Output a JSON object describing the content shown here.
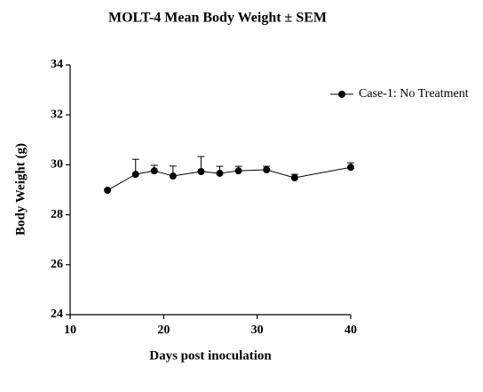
{
  "chart_data": {
    "type": "line",
    "title": "MOLT-4 Mean Body Weight ± SEM",
    "xlabel": "Days post inoculation",
    "ylabel": "Body Weight (g)",
    "x": [
      14,
      17,
      19,
      21,
      24,
      26,
      28,
      31,
      34,
      40
    ],
    "series": [
      {
        "name": "Case-1: No Treatment",
        "color": "#000000",
        "values": [
          28.98,
          29.62,
          29.76,
          29.55,
          29.73,
          29.66,
          29.76,
          29.8,
          29.48,
          29.9
        ],
        "errors": [
          0.05,
          0.6,
          0.22,
          0.4,
          0.6,
          0.28,
          0.18,
          0.14,
          0.14,
          0.18
        ]
      }
    ],
    "xlim": [
      10,
      40
    ],
    "xticks": [
      10,
      20,
      30,
      40
    ],
    "ylim": [
      24,
      34
    ],
    "yticks": [
      24,
      26,
      28,
      30,
      32,
      34
    ],
    "grid": false,
    "legend": "upper right"
  }
}
